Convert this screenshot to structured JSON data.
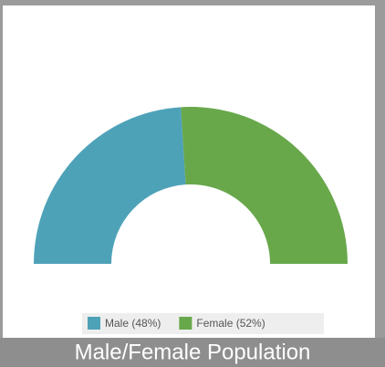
{
  "chart_data": {
    "type": "pie",
    "title": "Male/Female Population",
    "categories": [
      "Male (48%)",
      "Female (52%)"
    ],
    "values": [
      48,
      52
    ],
    "colors": [
      "#4ea2b8",
      "#68a84b"
    ]
  }
}
